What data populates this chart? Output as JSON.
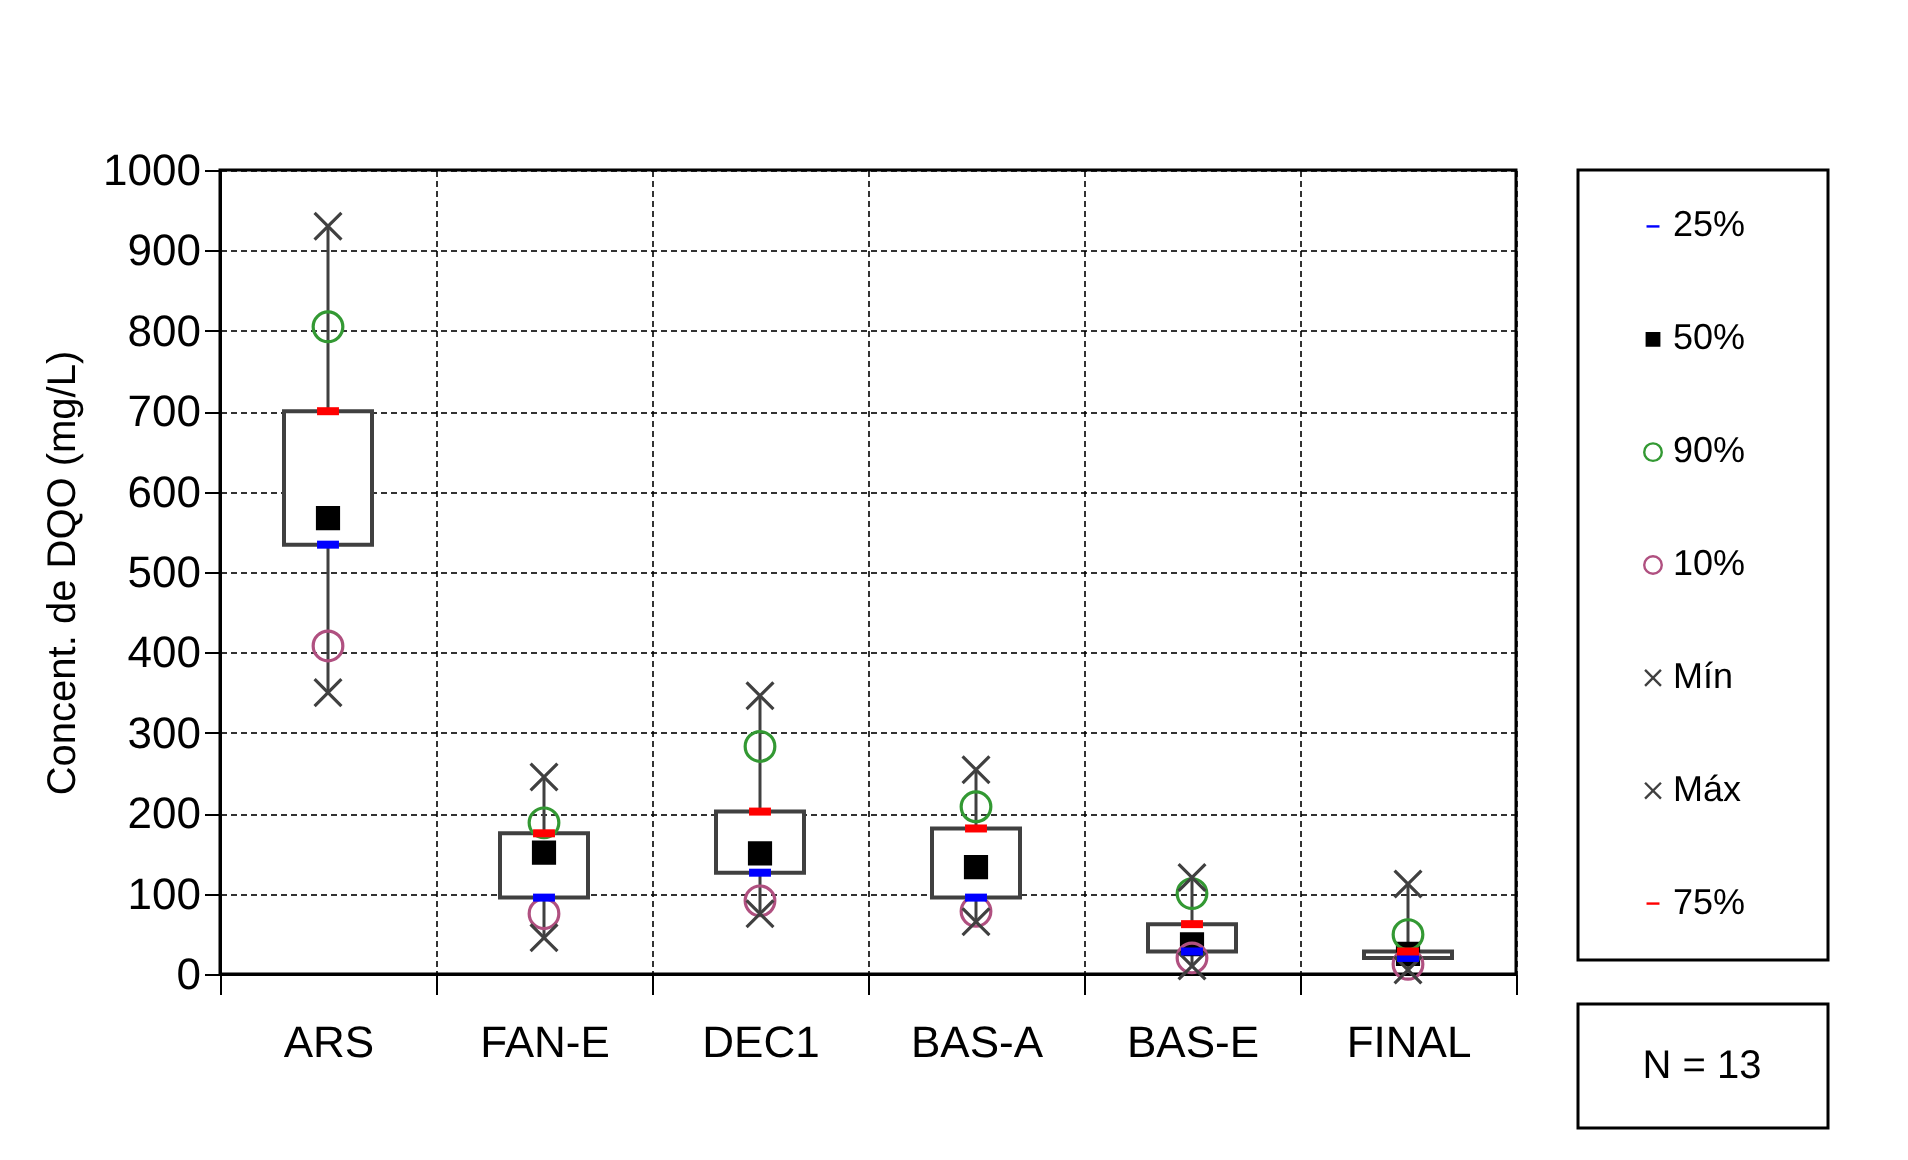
{
  "chart_data": {
    "type": "box",
    "ylabel": "Concent. de DQO (mg/L)",
    "categories": [
      "ARS",
      "FAN-E",
      "DEC1",
      "BAS-A",
      "BAS-E",
      "FINAL"
    ],
    "ylim": [
      0,
      1000
    ],
    "yticks": [
      0,
      100,
      200,
      300,
      400,
      500,
      600,
      700,
      800,
      900,
      1000
    ],
    "grid": true,
    "legend": "right",
    "boxes": [
      {
        "low": 350,
        "q1": 534,
        "q3": 700,
        "high": 930
      },
      {
        "low": 45,
        "q1": 95,
        "q3": 175,
        "high": 245
      },
      {
        "low": 75,
        "q1": 126,
        "q3": 202,
        "high": 346
      },
      {
        "low": 65,
        "q1": 95,
        "q3": 181,
        "high": 254
      },
      {
        "low": 10,
        "q1": 28,
        "q3": 62,
        "high": 120
      },
      {
        "low": 5,
        "q1": 20,
        "q3": 28,
        "high": 112
      }
    ],
    "series": [
      {
        "name": "25%",
        "type": "scatter",
        "color": "#0000ff",
        "values": [
          534,
          95,
          126,
          95,
          28,
          20
        ]
      },
      {
        "name": "50%",
        "type": "scatter",
        "marker": "square",
        "color": "#000000",
        "values": [
          567,
          151,
          150,
          133,
          37,
          25
        ]
      },
      {
        "name": "90%",
        "type": "scatter",
        "marker": "circle",
        "color": "#339933",
        "values": [
          805,
          188,
          283,
          208,
          100,
          49
        ]
      },
      {
        "name": "10%",
        "type": "scatter",
        "marker": "circle",
        "color": "#b05080",
        "values": [
          408,
          75,
          91,
          78,
          20,
          12
        ]
      },
      {
        "name": "Mín",
        "type": "scatter",
        "marker": "cross",
        "color": "#404040",
        "values": [
          350,
          45,
          75,
          65,
          10,
          5
        ]
      },
      {
        "name": "Máx",
        "type": "scatter",
        "marker": "cross",
        "color": "#404040",
        "values": [
          930,
          245,
          346,
          254,
          120,
          112
        ]
      },
      {
        "name": "75%",
        "type": "scatter",
        "color": "#ff0000",
        "values": [
          700,
          175,
          202,
          181,
          62,
          28
        ]
      }
    ],
    "annotations": [
      "N = 13"
    ]
  }
}
